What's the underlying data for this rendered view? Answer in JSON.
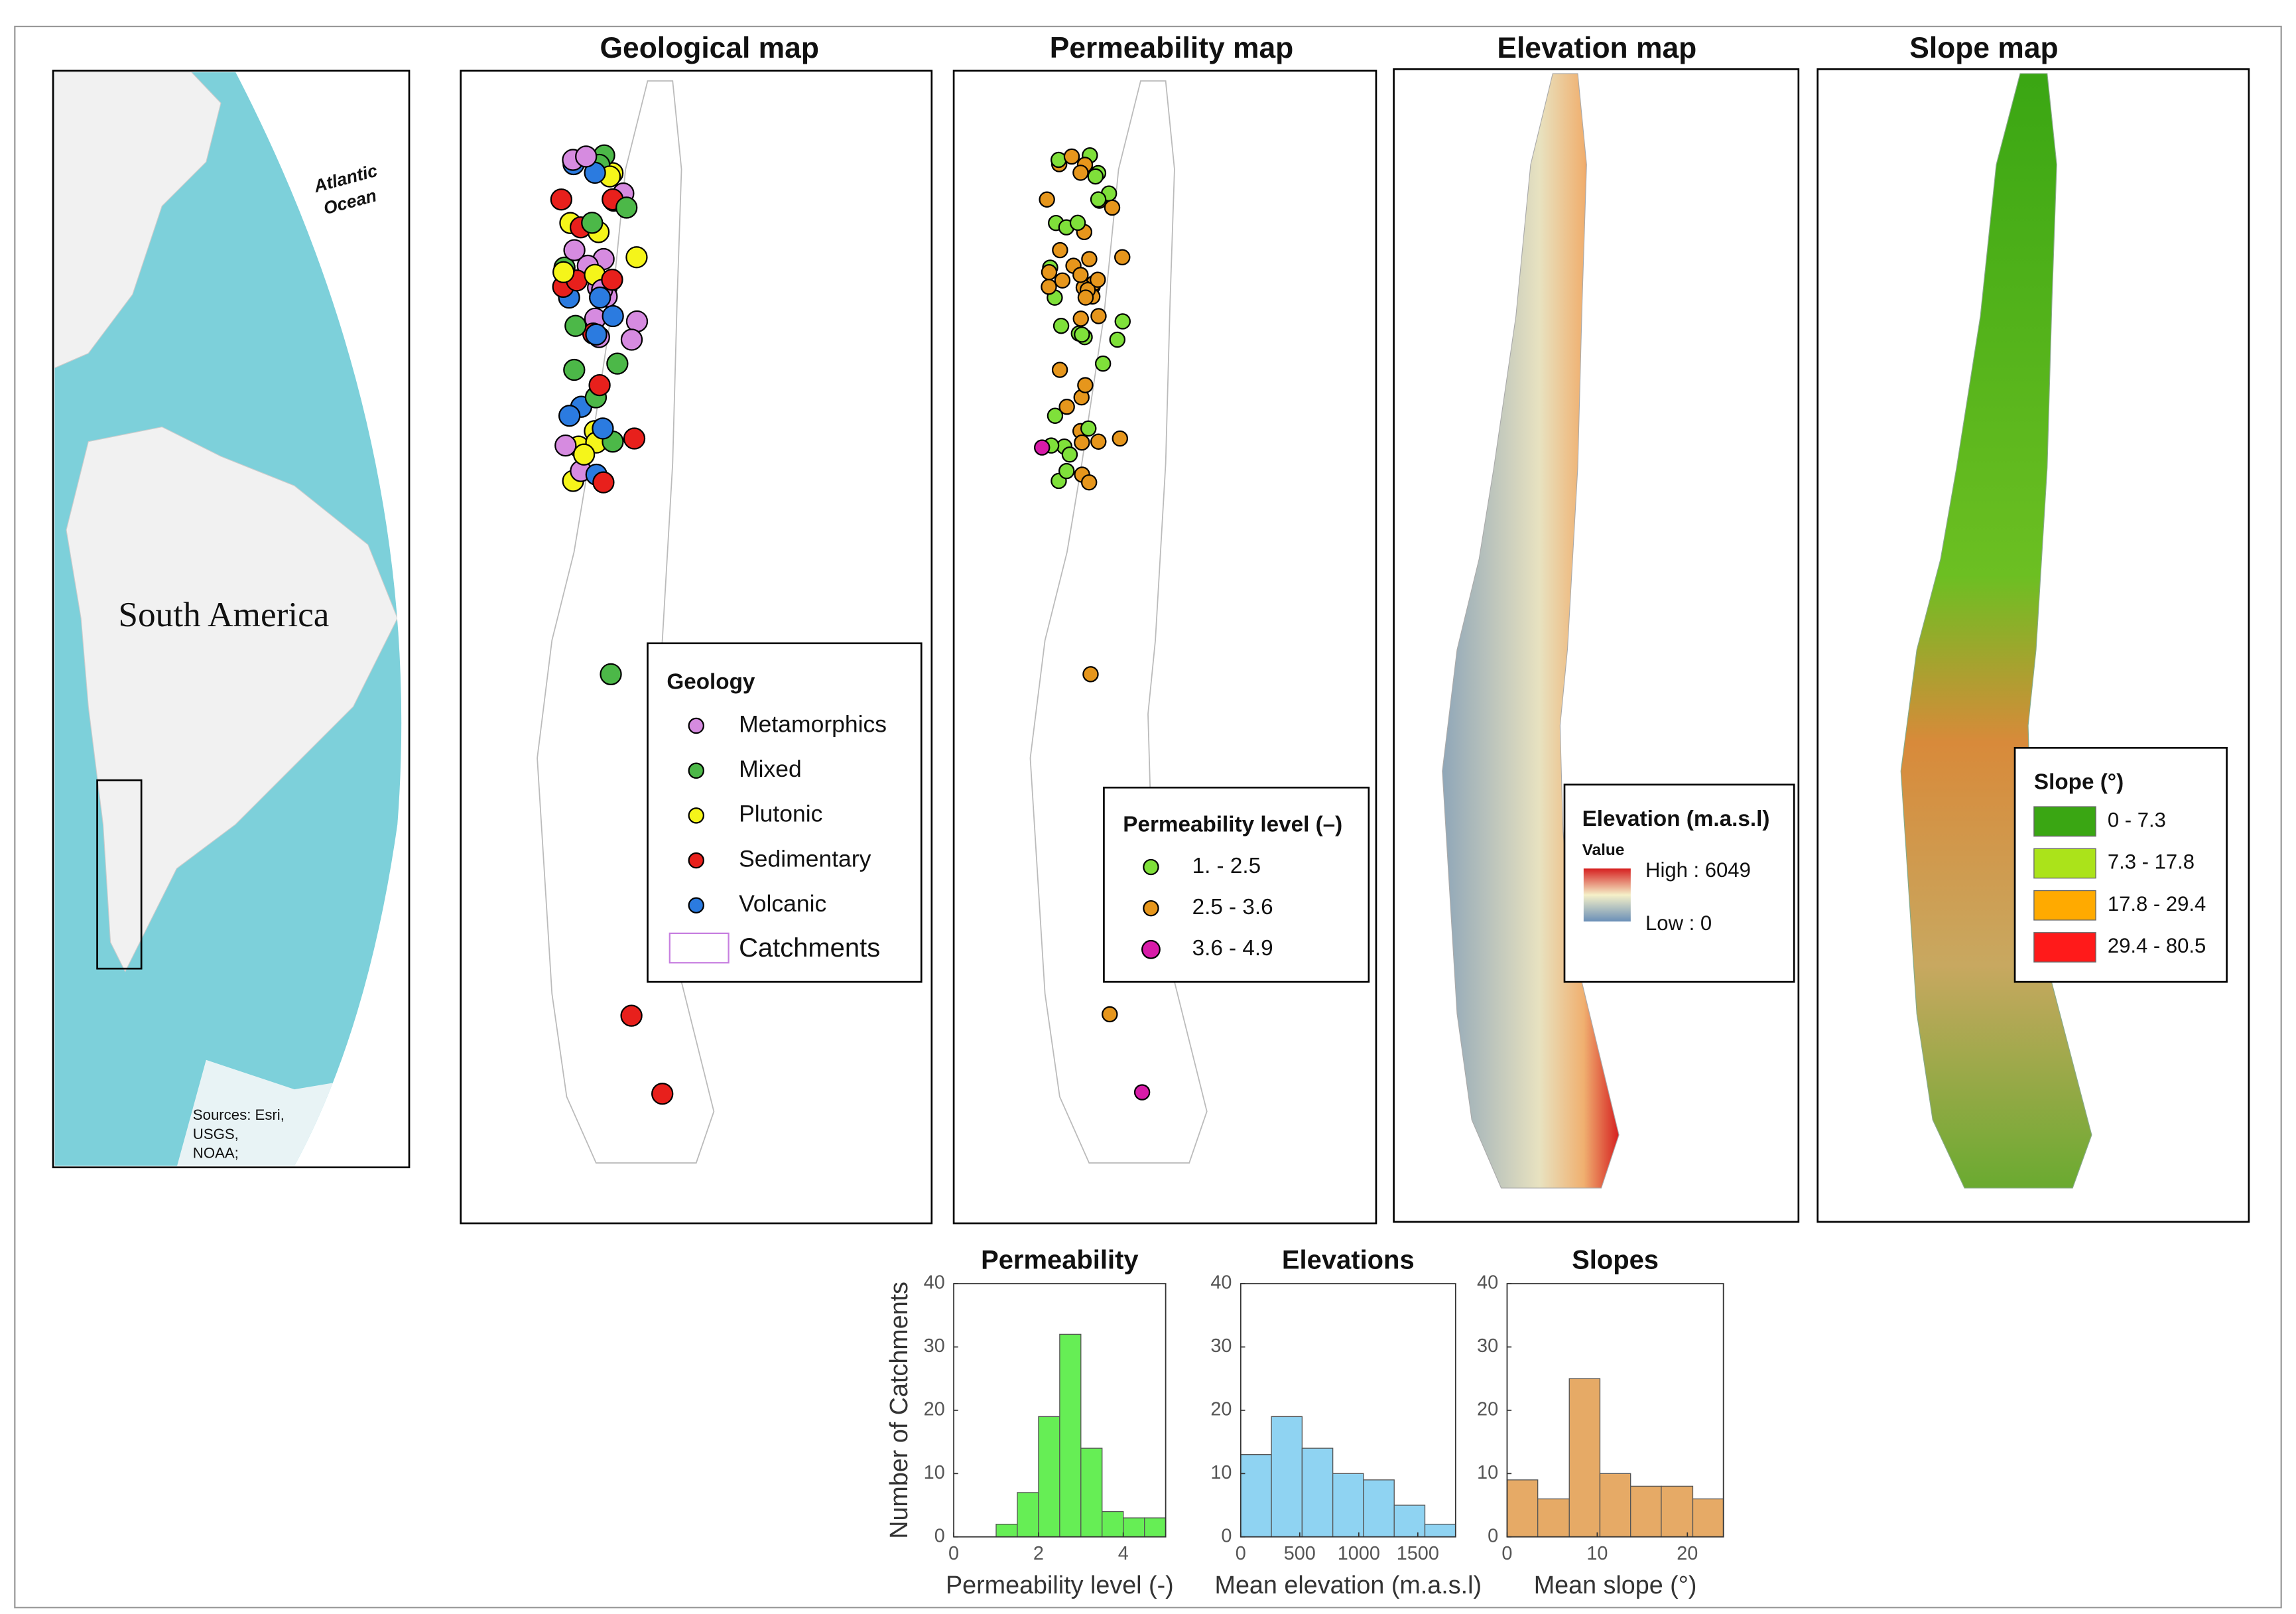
{
  "figure": {
    "overview_map": {
      "continent": "South America",
      "ocean": [
        "Atlantic",
        "Ocean"
      ],
      "sources": [
        "Sources: Esri,",
        "USGS,",
        "NOAA;"
      ]
    },
    "map_titles": [
      "Geological map",
      "Permeability map",
      "Elevation map",
      "Slope map"
    ],
    "geology_legend": {
      "title": "Geology",
      "items": [
        {
          "label": "Metamorphics",
          "color": "#d68be0"
        },
        {
          "label": "Mixed",
          "color": "#4cb848"
        },
        {
          "label": "Plutonic",
          "color": "#f5f51a"
        },
        {
          "label": "Sedimentary",
          "color": "#e8201c"
        },
        {
          "label": "Volcanic",
          "color": "#2b7be0"
        }
      ],
      "catchments": "Catchments",
      "catchments_color": "#c77fe0"
    },
    "permeability_legend": {
      "title": "Permeability level (–)",
      "items": [
        {
          "label": "1. - 2.5",
          "color": "#7fe03a"
        },
        {
          "label": "2.5 - 3.6",
          "color": "#e6961c"
        },
        {
          "label": "3.6 - 4.9",
          "color": "#d81ba8"
        }
      ]
    },
    "elevation_legend": {
      "title": "Elevation (m.a.s.l)",
      "subtitle": "Value",
      "high": "High : 6049",
      "low": "Low : 0"
    },
    "slope_legend": {
      "title": "Slope (°)",
      "items": [
        {
          "label": "0 - 7.3",
          "color": "#3aa613"
        },
        {
          "label": "7.3 - 17.8",
          "color": "#abe31a"
        },
        {
          "label": "17.8 - 29.4",
          "color": "#ffaa00"
        },
        {
          "label": "29.4 - 80.5",
          "color": "#ff1a1a"
        }
      ]
    }
  },
  "chart_data": [
    {
      "type": "histogram",
      "title": "Permeability",
      "bins": [
        1,
        1.5,
        2,
        2.5,
        3,
        3.5,
        4,
        4.5,
        5
      ],
      "values": [
        2,
        7,
        19,
        32,
        14,
        4,
        3,
        3
      ],
      "color": "#66ee55",
      "xlim": [
        0,
        5
      ],
      "ylim": [
        0,
        40
      ],
      "xticks": [
        0,
        2,
        4
      ],
      "yticks": [
        0,
        10,
        20,
        30,
        40
      ],
      "xlabel": "Permeability level (-)",
      "ylabel": "Number of Catchments"
    },
    {
      "type": "histogram",
      "title": "Elevations",
      "bins": [
        0,
        260,
        520,
        780,
        1040,
        1300,
        1560,
        1820
      ],
      "values": [
        13,
        19,
        14,
        10,
        9,
        5,
        2
      ],
      "color": "#8fd3f2",
      "xlim": [
        0,
        1820
      ],
      "ylim": [
        0,
        40
      ],
      "xticks": [
        0,
        500,
        1000,
        1500
      ],
      "yticks": [
        0,
        10,
        20,
        30,
        40
      ],
      "xlabel": "Mean elevation (m.a.s.l)"
    },
    {
      "type": "histogram",
      "title": "Slopes",
      "bins": [
        0,
        3.4,
        6.9,
        10.3,
        13.7,
        17.1,
        20.6,
        24
      ],
      "values": [
        9,
        6,
        25,
        10,
        8,
        8,
        6
      ],
      "color": "#e6aa66",
      "xlim": [
        0,
        24
      ],
      "ylim": [
        0,
        40
      ],
      "xticks": [
        0,
        10,
        20
      ],
      "yticks": [
        0,
        10,
        20,
        30,
        40
      ],
      "xlabel": "Mean slope (°)"
    }
  ]
}
